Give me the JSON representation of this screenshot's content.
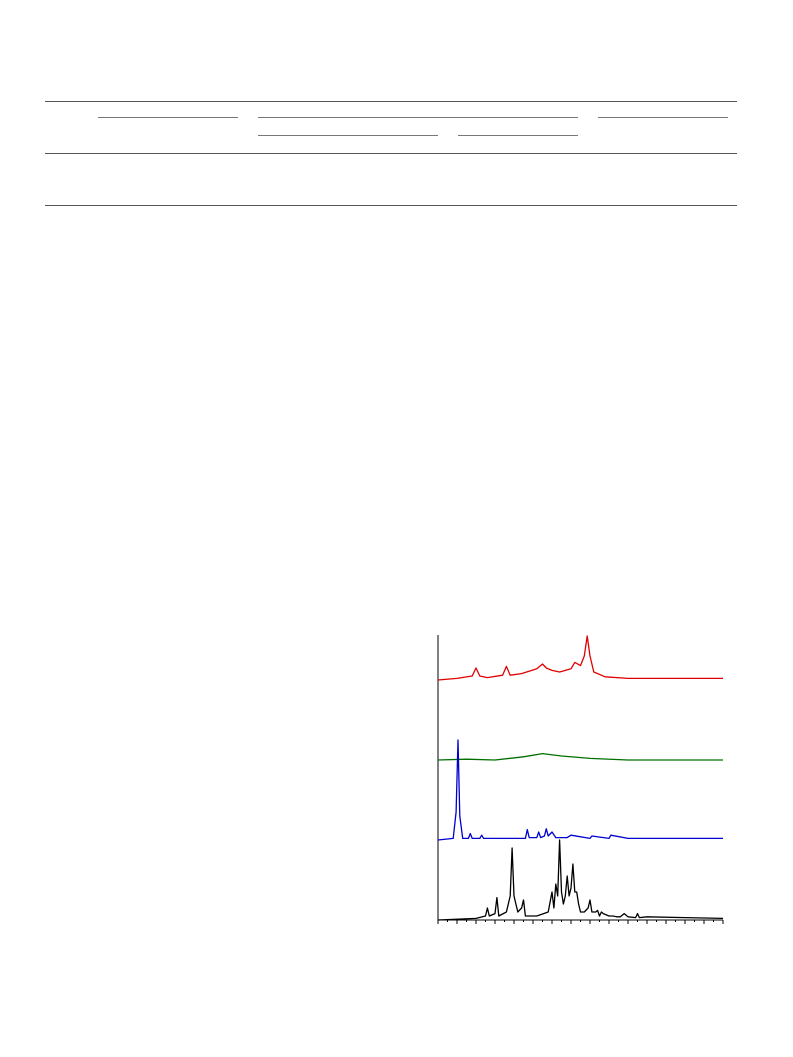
{
  "page": {
    "table": {
      "caption": "",
      "header_groups": [],
      "rows": []
    },
    "figure": {
      "caption": ""
    }
  },
  "chart_data": {
    "type": "line",
    "title": "",
    "xlabel": "",
    "ylabel": "",
    "xlim": [
      0,
      150
    ],
    "grid": false,
    "legend": "none",
    "series": [
      {
        "color": "#e00000",
        "offset": 3.0,
        "x": [
          0,
          10,
          18,
          20,
          22,
          26,
          34,
          36,
          38,
          44,
          52,
          55,
          57,
          60,
          64,
          70,
          72,
          75,
          77,
          78.5,
          80,
          82,
          88,
          100,
          120,
          150
        ],
        "y": [
          0,
          0.02,
          0.05,
          0.15,
          0.05,
          0.03,
          0.06,
          0.17,
          0.06,
          0.08,
          0.14,
          0.2,
          0.15,
          0.12,
          0.1,
          0.14,
          0.22,
          0.18,
          0.3,
          0.55,
          0.3,
          0.1,
          0.04,
          0.02,
          0.02,
          0.02
        ]
      },
      {
        "color": "#007000",
        "offset": 2.0,
        "x": [
          0,
          15,
          30,
          45,
          55,
          65,
          80,
          100,
          150
        ],
        "y": [
          0,
          0.01,
          0.0,
          0.04,
          0.08,
          0.05,
          0.02,
          0.0,
          0.0
        ]
      },
      {
        "color": "#0000d0",
        "offset": 1.0,
        "x": [
          0,
          8,
          9.5,
          10.5,
          11.5,
          13,
          16,
          17,
          18,
          22,
          23,
          24,
          40,
          46,
          47,
          48,
          52,
          53,
          54,
          56,
          57,
          58,
          60,
          62,
          68,
          70,
          80,
          81,
          90,
          91,
          100,
          150
        ],
        "y": [
          0,
          0.02,
          0.35,
          1.25,
          0.3,
          0.02,
          0.02,
          0.08,
          0.02,
          0.02,
          0.06,
          0.02,
          0.02,
          0.02,
          0.13,
          0.03,
          0.03,
          0.1,
          0.03,
          0.05,
          0.14,
          0.05,
          0.1,
          0.03,
          0.03,
          0.06,
          0.02,
          0.05,
          0.02,
          0.06,
          0.02,
          0.02
        ]
      },
      {
        "color": "#000000",
        "offset": 0.0,
        "x": [
          0,
          20,
          25,
          26,
          27,
          30,
          31,
          32,
          36,
          38,
          39,
          40,
          41,
          42,
          44,
          45,
          46,
          52,
          58,
          60,
          61,
          62,
          63,
          64,
          65,
          66,
          67,
          68,
          69,
          70,
          71,
          72,
          73,
          74,
          75,
          77,
          79,
          80,
          81,
          83,
          84,
          85,
          86,
          87,
          90,
          92,
          94,
          96,
          98,
          100,
          104,
          105,
          106,
          110,
          130,
          150
        ],
        "y": [
          0,
          0.02,
          0.05,
          0.15,
          0.05,
          0.08,
          0.28,
          0.05,
          0.1,
          0.3,
          0.9,
          0.3,
          0.2,
          0.1,
          0.15,
          0.25,
          0.05,
          0.05,
          0.1,
          0.35,
          0.15,
          0.45,
          0.3,
          1.0,
          0.35,
          0.2,
          0.3,
          0.55,
          0.3,
          0.4,
          0.7,
          0.35,
          0.35,
          0.2,
          0.1,
          0.1,
          0.15,
          0.25,
          0.1,
          0.1,
          0.12,
          0.05,
          0.1,
          0.08,
          0.05,
          0.05,
          0.04,
          0.04,
          0.08,
          0.04,
          0.03,
          0.08,
          0.03,
          0.04,
          0.03,
          0.02
        ]
      }
    ]
  }
}
